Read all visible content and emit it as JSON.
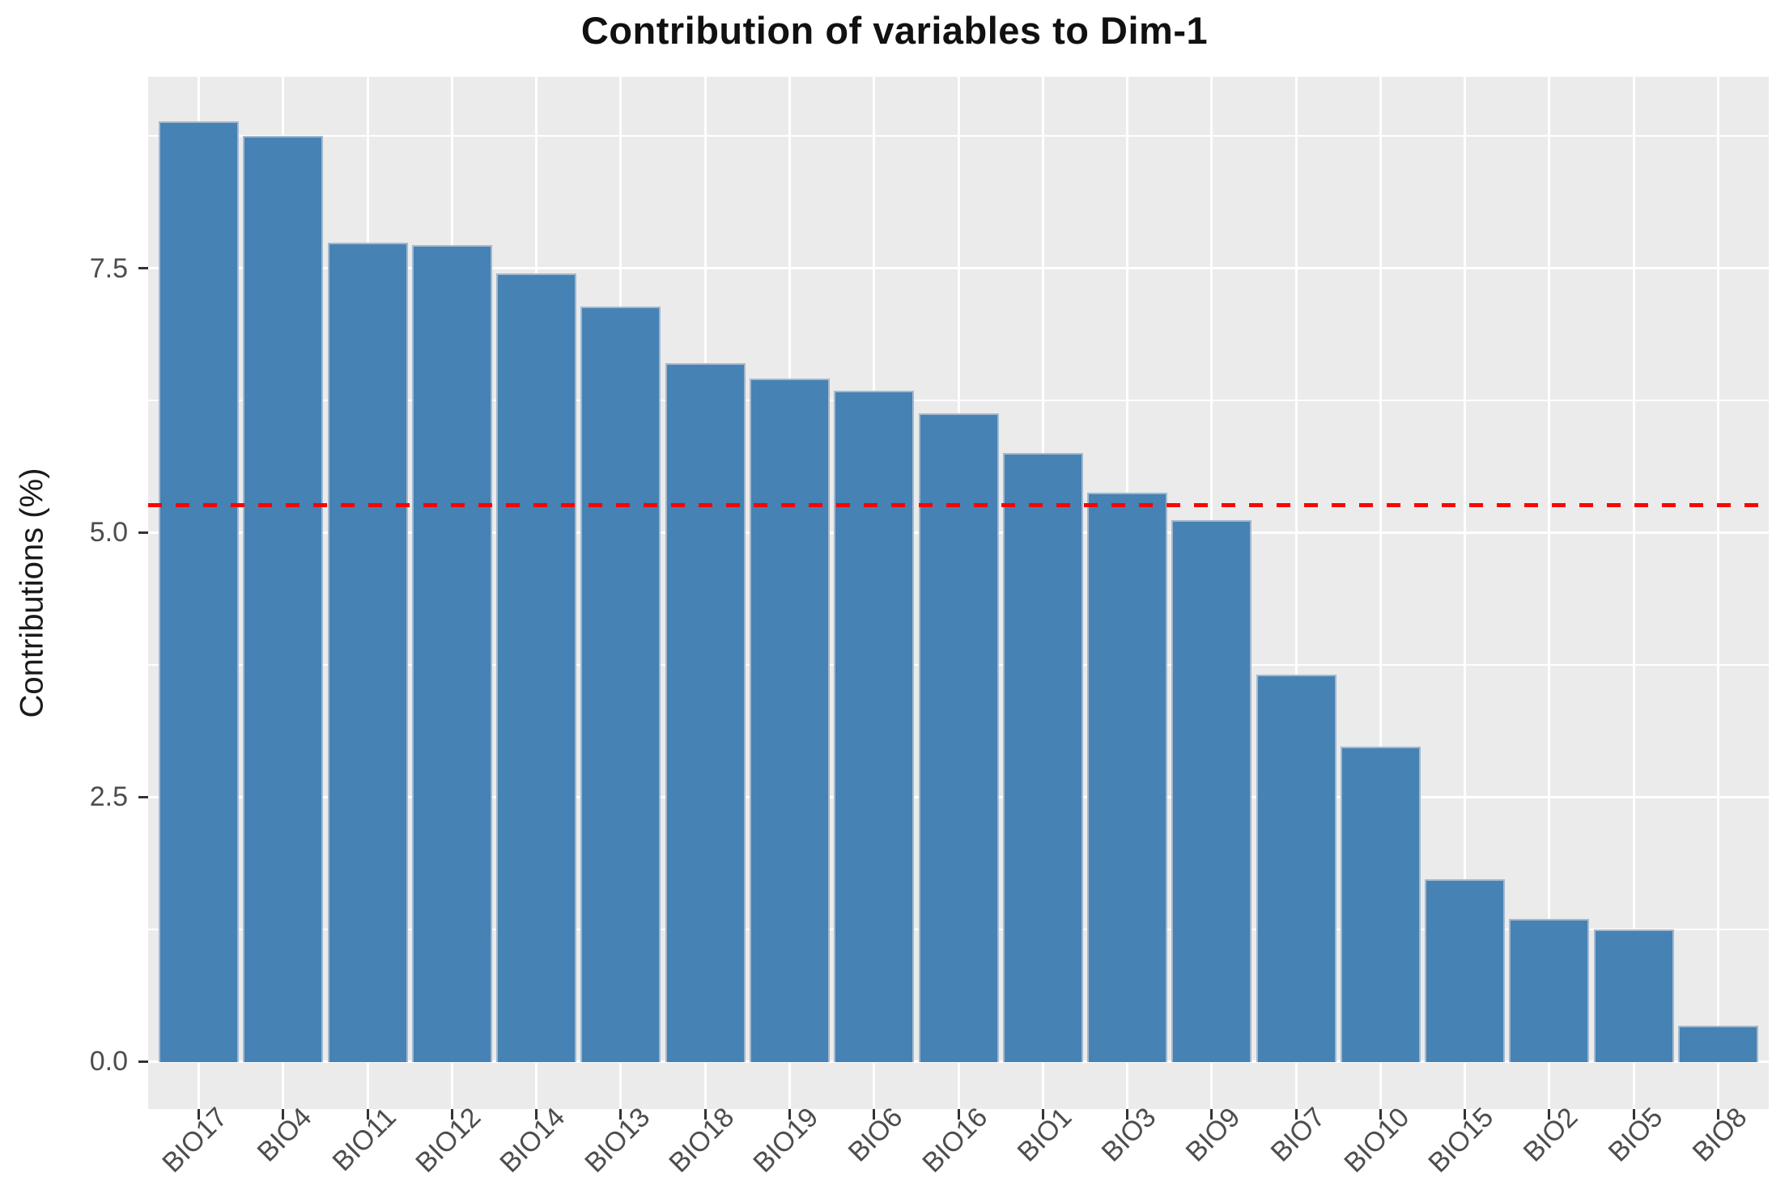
{
  "chart_data": {
    "type": "bar",
    "title": "Contribution of variables to Dim-1",
    "xlabel": "",
    "ylabel": "Contributions (%)",
    "categories": [
      "BIO17",
      "BIO4",
      "BIO11",
      "BIO12",
      "BIO14",
      "BIO13",
      "BIO18",
      "BIO19",
      "BIO6",
      "BIO16",
      "BIO1",
      "BIO3",
      "BIO9",
      "BIO7",
      "BIO10",
      "BIO15",
      "BIO2",
      "BIO5",
      "BIO8"
    ],
    "values": [
      8.89,
      8.75,
      7.74,
      7.72,
      7.45,
      7.14,
      6.6,
      6.46,
      6.34,
      6.13,
      5.75,
      5.38,
      5.12,
      3.66,
      2.98,
      1.72,
      1.35,
      1.25,
      0.34
    ],
    "yticks": [
      0.0,
      2.5,
      5.0,
      7.5
    ],
    "ytick_labels": [
      "0.0",
      "2.5",
      "5.0",
      "7.5"
    ],
    "yticks_minor": [
      1.25,
      3.75,
      6.25,
      8.75
    ],
    "ylim": [
      -0.45,
      9.31
    ],
    "grid": true,
    "legend_position": "none",
    "reference_line": {
      "value": 5.26,
      "style": "dashed",
      "color": "#FF0000"
    },
    "colors": {
      "bar_fill": "#4682B4",
      "bar_border": "#A3B8CE",
      "panel_bg": "#EBEBEB",
      "grid": "#FFFFFF",
      "tick_label": "#4D4D4D",
      "axis_title": "#1A1A1A",
      "title": "#111111",
      "reference": "#FF0000"
    }
  }
}
